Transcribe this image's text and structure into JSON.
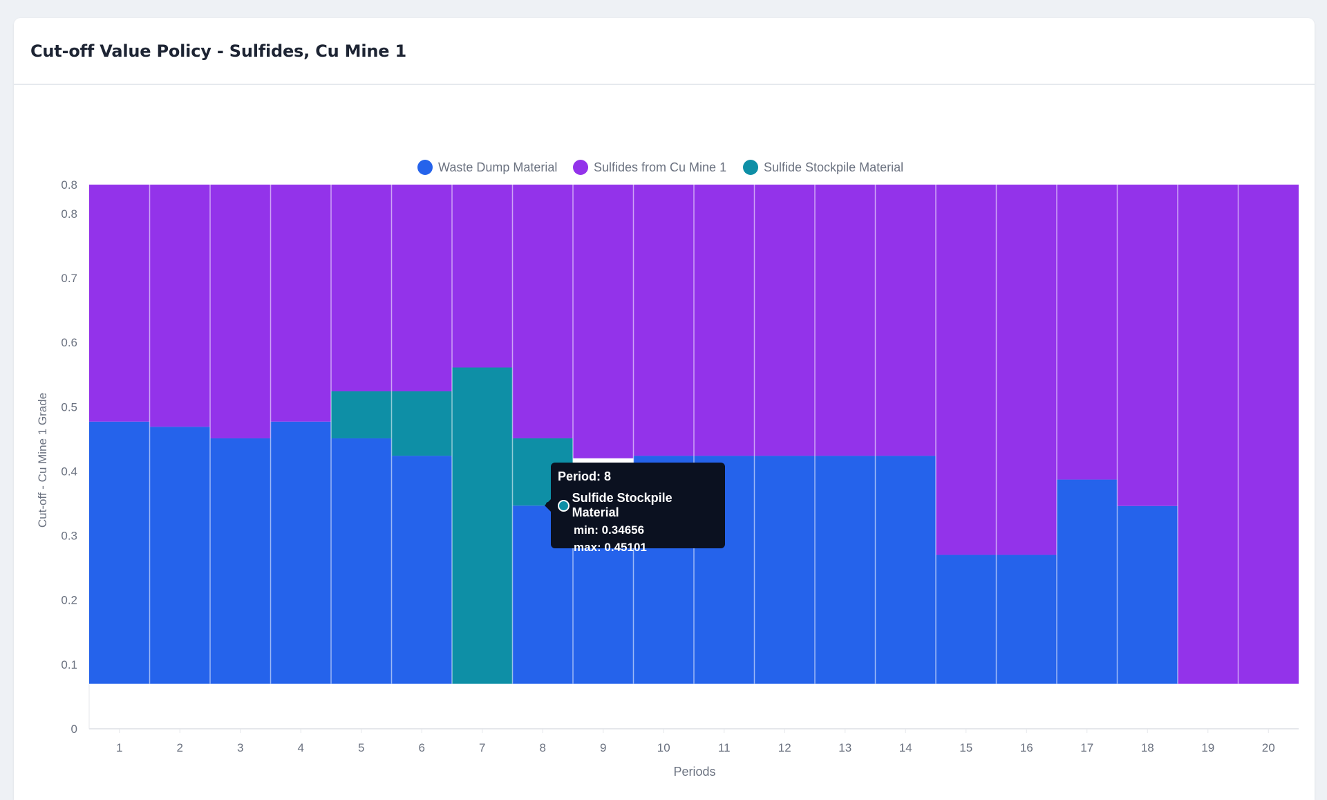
{
  "card": {
    "title": "Cut-off Value Policy - Sulfides, Cu Mine 1"
  },
  "colors": {
    "waste": "#2563eb",
    "sulfides": "#9333ea",
    "stockpile": "#0e8fa6",
    "grid": "#e5e7eb",
    "axis_text": "#6b7280"
  },
  "chart_data": {
    "type": "bar",
    "title": "",
    "xlabel": "Periods",
    "ylabel": "Cut-off - Cu Mine 1 Grade",
    "ylim": [
      0,
      0.845
    ],
    "y_ticks": [
      {
        "value": 0,
        "label": "0"
      },
      {
        "value": 0.1,
        "label": "0.1"
      },
      {
        "value": 0.2,
        "label": "0.2"
      },
      {
        "value": 0.3,
        "label": "0.3"
      },
      {
        "value": 0.4,
        "label": "0.4"
      },
      {
        "value": 0.5,
        "label": "0.5"
      },
      {
        "value": 0.6,
        "label": "0.6"
      },
      {
        "value": 0.7,
        "label": "0.7"
      },
      {
        "value": 0.8,
        "label": "0.8"
      },
      {
        "value": 0.845,
        "label": "0.8"
      }
    ],
    "categories": [
      "1",
      "2",
      "3",
      "4",
      "5",
      "6",
      "7",
      "8",
      "9",
      "10",
      "11",
      "12",
      "13",
      "14",
      "15",
      "16",
      "17",
      "18",
      "19",
      "20"
    ],
    "legend_position": "top-center",
    "series": [
      {
        "name": "Waste Dump Material",
        "color_key": "waste",
        "ranges": [
          [
            0.07,
            0.477
          ],
          [
            0.07,
            0.469
          ],
          [
            0.07,
            0.451
          ],
          [
            0.07,
            0.477
          ],
          [
            0.07,
            0.451
          ],
          [
            0.07,
            0.424
          ],
          [
            null,
            null
          ],
          [
            0.07,
            0.34656
          ],
          [
            0.07,
            0.3
          ],
          [
            0.07,
            0.424
          ],
          [
            0.07,
            0.424
          ],
          [
            0.07,
            0.424
          ],
          [
            0.07,
            0.424
          ],
          [
            0.07,
            0.424
          ],
          [
            0.07,
            0.27
          ],
          [
            0.07,
            0.27
          ],
          [
            0.07,
            0.387
          ],
          [
            0.07,
            0.346
          ],
          [
            null,
            null
          ],
          [
            null,
            null
          ]
        ]
      },
      {
        "name": "Sulfides from Cu Mine 1",
        "color_key": "sulfides",
        "ranges": [
          [
            0.477,
            0.845
          ],
          [
            0.469,
            0.845
          ],
          [
            0.451,
            0.845
          ],
          [
            0.477,
            0.845
          ],
          [
            0.524,
            0.845
          ],
          [
            0.524,
            0.845
          ],
          [
            0.561,
            0.845
          ],
          [
            0.45101,
            0.845
          ],
          [
            0.42,
            0.845
          ],
          [
            0.424,
            0.845
          ],
          [
            0.424,
            0.845
          ],
          [
            0.424,
            0.845
          ],
          [
            0.424,
            0.845
          ],
          [
            0.424,
            0.845
          ],
          [
            0.27,
            0.845
          ],
          [
            0.27,
            0.845
          ],
          [
            0.387,
            0.845
          ],
          [
            0.346,
            0.845
          ],
          [
            0.07,
            0.845
          ],
          [
            0.07,
            0.845
          ]
        ]
      },
      {
        "name": "Sulfide Stockpile Material",
        "color_key": "stockpile",
        "ranges": [
          [
            null,
            null
          ],
          [
            null,
            null
          ],
          [
            null,
            null
          ],
          [
            null,
            null
          ],
          [
            0.451,
            0.524
          ],
          [
            0.424,
            0.524
          ],
          [
            0.07,
            0.561
          ],
          [
            0.34656,
            0.45101
          ],
          [
            null,
            null
          ],
          [
            null,
            null
          ],
          [
            null,
            null
          ],
          [
            null,
            null
          ],
          [
            null,
            null
          ],
          [
            null,
            null
          ],
          [
            null,
            null
          ],
          [
            null,
            null
          ],
          [
            null,
            null
          ],
          [
            null,
            null
          ],
          [
            null,
            null
          ],
          [
            null,
            null
          ]
        ]
      }
    ]
  },
  "tooltip": {
    "title": "Period: 8",
    "series_name": "Sulfide Stockpile Material",
    "min_text": "min: 0.34656",
    "max_text": "max: 0.45101"
  }
}
